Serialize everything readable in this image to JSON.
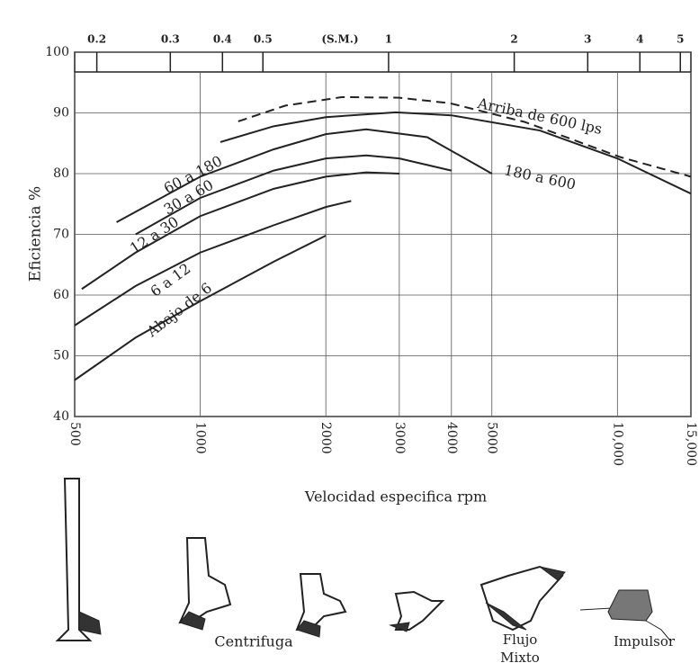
{
  "chart_data": {
    "type": "line",
    "xscale": "log",
    "x_label": "Velocidad especifica rpm",
    "y_label": "Eficiencia %",
    "xlim": [
      500,
      15000
    ],
    "ylim": [
      40,
      100
    ],
    "xticks": [
      500,
      1000,
      2000,
      3000,
      4000,
      5000,
      {
        "value": 10000,
        "label": "10,000"
      },
      {
        "value": 15000,
        "label": "15,000"
      }
    ],
    "yticks": [
      40,
      50,
      60,
      70,
      80,
      90,
      100
    ],
    "x2lim": [
      0.177,
      5.3
    ],
    "x2ticks": [
      0.2,
      0.3,
      0.4,
      0.5,
      1,
      2,
      3,
      4,
      5
    ],
    "x2_annotation": "(S.M.)",
    "grid": true,
    "series": [
      {
        "name": "Arriba de 600 lps",
        "color": "#222222",
        "dashed": true,
        "x": [
          1233,
          1600,
          2183,
          3000,
          3964,
          6000,
          10180,
          15000
        ],
        "values": [
          88.6,
          91.2,
          92.6,
          92.5,
          91.6,
          88.5,
          82.7,
          79.5
        ]
      },
      {
        "name": "180 a 600",
        "color": "#222222",
        "x": [
          1117,
          1500,
          2000,
          2942,
          4000,
          6515,
          10000,
          15000
        ],
        "values": [
          85.2,
          87.8,
          89.3,
          90.1,
          89.6,
          87.1,
          82.5,
          76.7
        ]
      },
      {
        "name": "60 a 180",
        "color": "#222222",
        "x": [
          630,
          1000,
          1500,
          2000,
          2500,
          3500,
          5000
        ],
        "values": [
          72,
          79.5,
          84,
          86.5,
          87.3,
          86,
          80
        ]
      },
      {
        "name": "30 a 60",
        "color": "#222222",
        "x": [
          700,
          1000,
          1500,
          2000,
          2500,
          3000,
          4000
        ],
        "values": [
          70,
          76,
          80.5,
          82.5,
          83,
          82.5,
          80.5
        ]
      },
      {
        "name": "12 a 30",
        "color": "#222222",
        "x": [
          520,
          700,
          1000,
          1500,
          2000,
          2500,
          3000
        ],
        "values": [
          61,
          67,
          73,
          77.5,
          79.5,
          80.2,
          80
        ]
      },
      {
        "name": "6 a 12",
        "color": "#222222",
        "x": [
          500,
          700,
          1000,
          1500,
          2000,
          2300
        ],
        "values": [
          55,
          61.5,
          67,
          71.5,
          74.5,
          75.5
        ]
      },
      {
        "name": "Abajo de 6",
        "color": "#222222",
        "x": [
          500,
          700,
          1000,
          1500,
          2000
        ],
        "values": [
          46,
          53,
          59,
          65.5,
          69.8
        ]
      }
    ]
  },
  "impeller_labels": {
    "centrifugal": "Centrifuga",
    "mixed_flow": [
      "Flujo",
      "Mixto"
    ],
    "impulsor": "Impulsor"
  }
}
